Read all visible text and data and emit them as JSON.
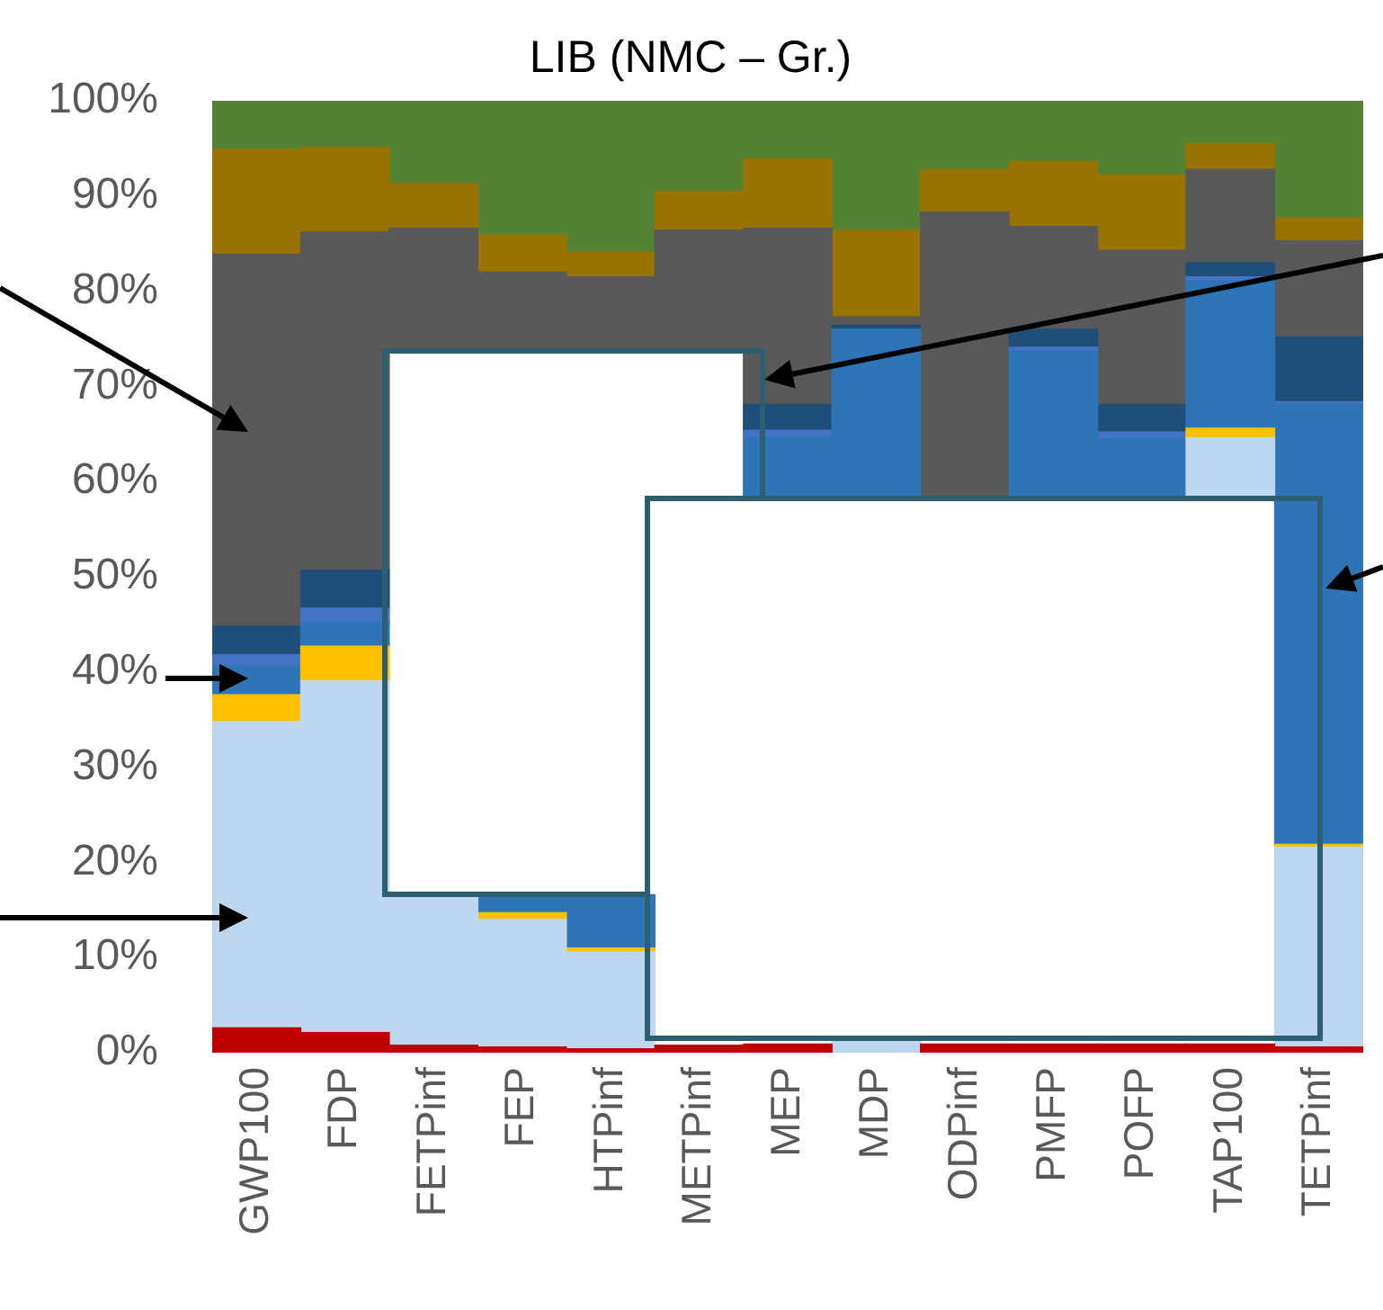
{
  "chart_data": {
    "type": "bar",
    "title": "LIB (NMC – Gr.)",
    "categories": [
      "GWP100",
      "FDP",
      "FETPinf",
      "FEP",
      "HTPinf",
      "METPinf",
      "MEP",
      "MDP",
      "ODPinf",
      "PMFP",
      "POFP",
      "TAP100",
      "TETPinf"
    ],
    "ylim": [
      0,
      100
    ],
    "yticks": [
      {
        "value": 0,
        "label": "0%"
      },
      {
        "value": 10,
        "label": "10%"
      },
      {
        "value": 20,
        "label": "20%"
      },
      {
        "value": 30,
        "label": "30%"
      },
      {
        "value": 40,
        "label": "40%"
      },
      {
        "value": 50,
        "label": "50%"
      },
      {
        "value": 60,
        "label": "60%"
      },
      {
        "value": 70,
        "label": "70%"
      },
      {
        "value": 80,
        "label": "80%"
      },
      {
        "value": 90,
        "label": "90%"
      },
      {
        "value": 100,
        "label": "100%"
      }
    ],
    "grid": false,
    "legend": false,
    "series": [
      {
        "color": "#c00000",
        "base": [
          0,
          0,
          0,
          0,
          0,
          0,
          0,
          null,
          0,
          0,
          0,
          0,
          0
        ],
        "values": [
          2.6,
          2.1,
          0.8,
          0.6,
          0.4,
          0.8,
          0.9,
          null,
          0.9,
          0.9,
          0.9,
          0.9,
          0.6
        ]
      },
      {
        "color": "#bdd7ee",
        "base": [
          2.6,
          2.1,
          0.8,
          0.6,
          0.4,
          null,
          null,
          0,
          null,
          null,
          null,
          58.4,
          0.6
        ],
        "values": [
          32.2,
          37.0,
          15.8,
          13.4,
          10.2,
          null,
          null,
          1.5,
          null,
          null,
          null,
          6.2,
          21.0
        ]
      },
      {
        "color": "#ffc000",
        "base": [
          34.8,
          39.1,
          null,
          14.0,
          10.6,
          null,
          null,
          null,
          null,
          null,
          null,
          64.6,
          21.6
        ],
        "values": [
          2.8,
          3.6,
          null,
          0.7,
          0.4,
          null,
          null,
          null,
          null,
          null,
          null,
          1.0,
          0.3
        ]
      },
      {
        "color": "#2e75b6",
        "base": [
          37.6,
          42.7,
          null,
          14.7,
          11.0,
          null,
          58.4,
          58.4,
          null,
          58.4,
          58.4,
          65.6,
          21.9
        ],
        "values": [
          3.0,
          2.5,
          null,
          1.9,
          5.6,
          null,
          6.2,
          17.6,
          null,
          15.3,
          6.1,
          15.5,
          46.2
        ]
      },
      {
        "color": "#4472c4",
        "base": [
          40.6,
          45.2,
          null,
          null,
          null,
          null,
          64.6,
          null,
          null,
          73.7,
          64.5,
          81.1,
          68.1
        ],
        "values": [
          1.2,
          1.5,
          null,
          null,
          null,
          null,
          0.8,
          null,
          null,
          0.4,
          0.7,
          0.4,
          0.3
        ]
      },
      {
        "color": "#1f4e79",
        "base": [
          41.8,
          46.7,
          null,
          null,
          null,
          null,
          65.4,
          76.0,
          null,
          74.1,
          65.2,
          81.5,
          68.4
        ],
        "values": [
          3.0,
          4.0,
          null,
          null,
          null,
          null,
          2.7,
          0.4,
          null,
          1.9,
          2.9,
          1.5,
          6.8
        ]
      },
      {
        "color": "#595959",
        "base": [
          44.8,
          50.7,
          73.9,
          73.9,
          73.9,
          73.9,
          68.1,
          76.4,
          58.4,
          76.0,
          68.1,
          83.0,
          75.2
        ],
        "values": [
          39.1,
          35.5,
          12.7,
          8.1,
          7.6,
          12.5,
          18.5,
          0.9,
          29.9,
          10.8,
          16.2,
          9.8,
          10.1
        ]
      },
      {
        "color": "#997300",
        "base": [
          83.9,
          86.2,
          86.6,
          82.0,
          81.5,
          86.4,
          86.6,
          77.3,
          88.3,
          86.8,
          84.3,
          92.8,
          85.3
        ],
        "values": [
          11.0,
          8.9,
          4.7,
          3.9,
          2.6,
          4.1,
          7.3,
          9.1,
          4.5,
          6.8,
          7.9,
          2.7,
          2.4
        ]
      },
      {
        "color": "#548235",
        "base": [
          94.9,
          95.1,
          91.3,
          85.9,
          84.1,
          90.5,
          93.9,
          86.4,
          92.8,
          93.6,
          92.2,
          95.5,
          87.7
        ],
        "values": [
          5.1,
          4.9,
          8.7,
          14.1,
          15.9,
          9.5,
          6.1,
          13.6,
          7.2,
          6.4,
          7.8,
          4.5,
          12.3
        ]
      }
    ]
  }
}
